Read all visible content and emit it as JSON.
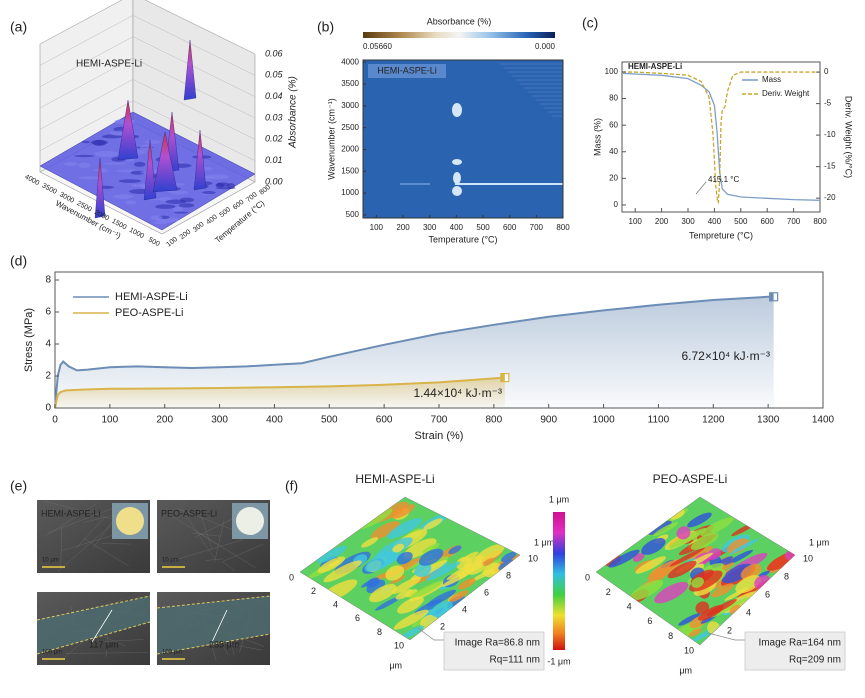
{
  "chart_data": [
    {
      "label": "(a)",
      "type": "surface3d",
      "title": "HEMI-ASPE-Li",
      "zlabel": "Absorbance (%)",
      "xlabel": "Wavenumber (cm⁻¹)",
      "ylabel": "Temperature (°C)",
      "zlim": [
        0,
        0.06
      ],
      "zticks": [
        {
          "value": 0,
          "label": "0.00"
        },
        0.01,
        0.02,
        0.03,
        0.04,
        0.05,
        0.06
      ],
      "xticks": [
        4000,
        3500,
        3000,
        2500,
        2000,
        1500,
        1000,
        500
      ],
      "yticks": [
        100,
        200,
        300,
        400,
        500,
        600,
        700,
        800
      ]
    },
    {
      "label": "(b)",
      "type": "heatmap",
      "title": "HEMI-ASPE-Li",
      "colorbar_label": "Absorbance (%)",
      "colorbar_range": [
        {
          "value": 0.0566,
          "label": "0.05660"
        },
        {
          "value": 0,
          "label": "0.000"
        }
      ],
      "xlabel": "Temperature (°C)",
      "ylabel": "Wavenumber (cm⁻¹)",
      "xlim": [
        50,
        800
      ],
      "xticks": [
        100,
        200,
        300,
        400,
        500,
        600,
        700,
        800
      ],
      "ylim": [
        430,
        4050
      ],
      "yticks": [
        500,
        1000,
        1500,
        2000,
        2500,
        3000,
        3500,
        4000
      ]
    },
    {
      "label": "(c)",
      "type": "line",
      "title": "HEMI-ASPE-Li",
      "xlabel": "Tempreture (°C)",
      "ylabel": "Mass (%)",
      "y2label": "Deriv. Weight (%/°C)",
      "annotation": "415.1 °C",
      "legend": "upper right",
      "xlim": [
        50,
        800
      ],
      "xticks": [
        100,
        200,
        300,
        400,
        500,
        600,
        700,
        800
      ],
      "ylim": [
        -5.3,
        107.5
      ],
      "yticks": [
        0,
        20,
        40,
        60,
        80,
        100
      ],
      "y2lim": [
        -22.2,
        1.6
      ],
      "y2ticks": [
        0,
        -5,
        -10,
        -15,
        -20
      ],
      "series": [
        {
          "name": "Mass",
          "color": "#7f9fc7",
          "x": [
            50,
            100,
            200,
            300,
            350,
            380,
            400,
            410,
            415,
            420,
            430,
            450,
            500,
            600,
            700,
            800
          ],
          "values": [
            99,
            98.5,
            97.5,
            95,
            90,
            85,
            75,
            55,
            40,
            25,
            12,
            8,
            6,
            5,
            4,
            3.5
          ]
        },
        {
          "name": "Deriv. Weight",
          "color": "#c8a82c",
          "axis": "y2",
          "dashed": true,
          "x": [
            50,
            100,
            200,
            300,
            350,
            380,
            395,
            405,
            412,
            415,
            420,
            425,
            430,
            440,
            450,
            470,
            500,
            600,
            800
          ],
          "values": [
            0,
            0,
            -0.2,
            -0.5,
            -1.5,
            -4,
            -10,
            -18,
            -20.5,
            -20.8,
            -17,
            -8,
            -6,
            -5.5,
            -3,
            -0.5,
            0,
            0,
            0
          ]
        }
      ]
    },
    {
      "label": "(d)",
      "type": "line",
      "xlabel": "Strain (%)",
      "ylabel": "Stress (MPa)",
      "legend": "upper left",
      "area": true,
      "end_markers": true,
      "xlim": [
        0,
        1400
      ],
      "xticks": [
        0,
        100,
        200,
        300,
        400,
        500,
        600,
        700,
        800,
        900,
        1000,
        1100,
        1200,
        1300,
        1400
      ],
      "ylim": [
        0,
        8.5
      ],
      "yticks": [
        0,
        2,
        4,
        6,
        8
      ],
      "series": [
        {
          "name": "HEMI-ASPE-Li",
          "color": "#6c8db5",
          "annotation": "6.72×10⁴ kJ·m⁻³",
          "x": [
            0,
            5,
            10,
            15,
            25,
            40,
            60,
            100,
            150,
            200,
            250,
            300,
            350,
            400,
            450,
            500,
            600,
            700,
            800,
            900,
            1000,
            1100,
            1200,
            1300,
            1310
          ],
          "values": [
            0,
            2.0,
            2.7,
            2.9,
            2.6,
            2.35,
            2.4,
            2.55,
            2.6,
            2.55,
            2.5,
            2.55,
            2.6,
            2.7,
            2.8,
            3.2,
            3.95,
            4.65,
            5.2,
            5.7,
            6.1,
            6.45,
            6.75,
            6.95,
            6.95
          ]
        },
        {
          "name": "PEO-ASPE-Li",
          "color": "#d9b44a",
          "annotation": "1.44×10⁴ kJ·m⁻³",
          "x": [
            0,
            5,
            10,
            20,
            50,
            100,
            200,
            300,
            400,
            500,
            600,
            700,
            800,
            820
          ],
          "values": [
            0,
            0.8,
            1.0,
            1.1,
            1.15,
            1.2,
            1.22,
            1.25,
            1.3,
            1.35,
            1.45,
            1.6,
            1.85,
            1.9
          ]
        }
      ]
    },
    {
      "label": "(e)",
      "type": "image",
      "panels": [
        {
          "title": "HEMI-ASPE-Li",
          "scale": "10 μm"
        },
        {
          "title": "PEO-ASPE-Li",
          "scale": "10 μm"
        },
        {
          "scale": "100 μm",
          "thickness": "117 μm"
        },
        {
          "scale": "100 μm",
          "thickness": "233 μm"
        }
      ]
    },
    {
      "label": "(f)",
      "type": "surface-map",
      "colorbar_labels": [
        "1 μm",
        "-1 μm"
      ],
      "edge_ticks": [
        0,
        2,
        4,
        6,
        8,
        10
      ],
      "unit": "μm",
      "surfaces": [
        {
          "title": "HEMI-ASPE-Li",
          "ra": "Image Ra=86.8 nm",
          "rq": "Rq=111 nm"
        },
        {
          "title": "PEO-ASPE-Li",
          "ra": "Image Ra=164 nm",
          "rq": "Rq=209 nm"
        }
      ]
    }
  ]
}
